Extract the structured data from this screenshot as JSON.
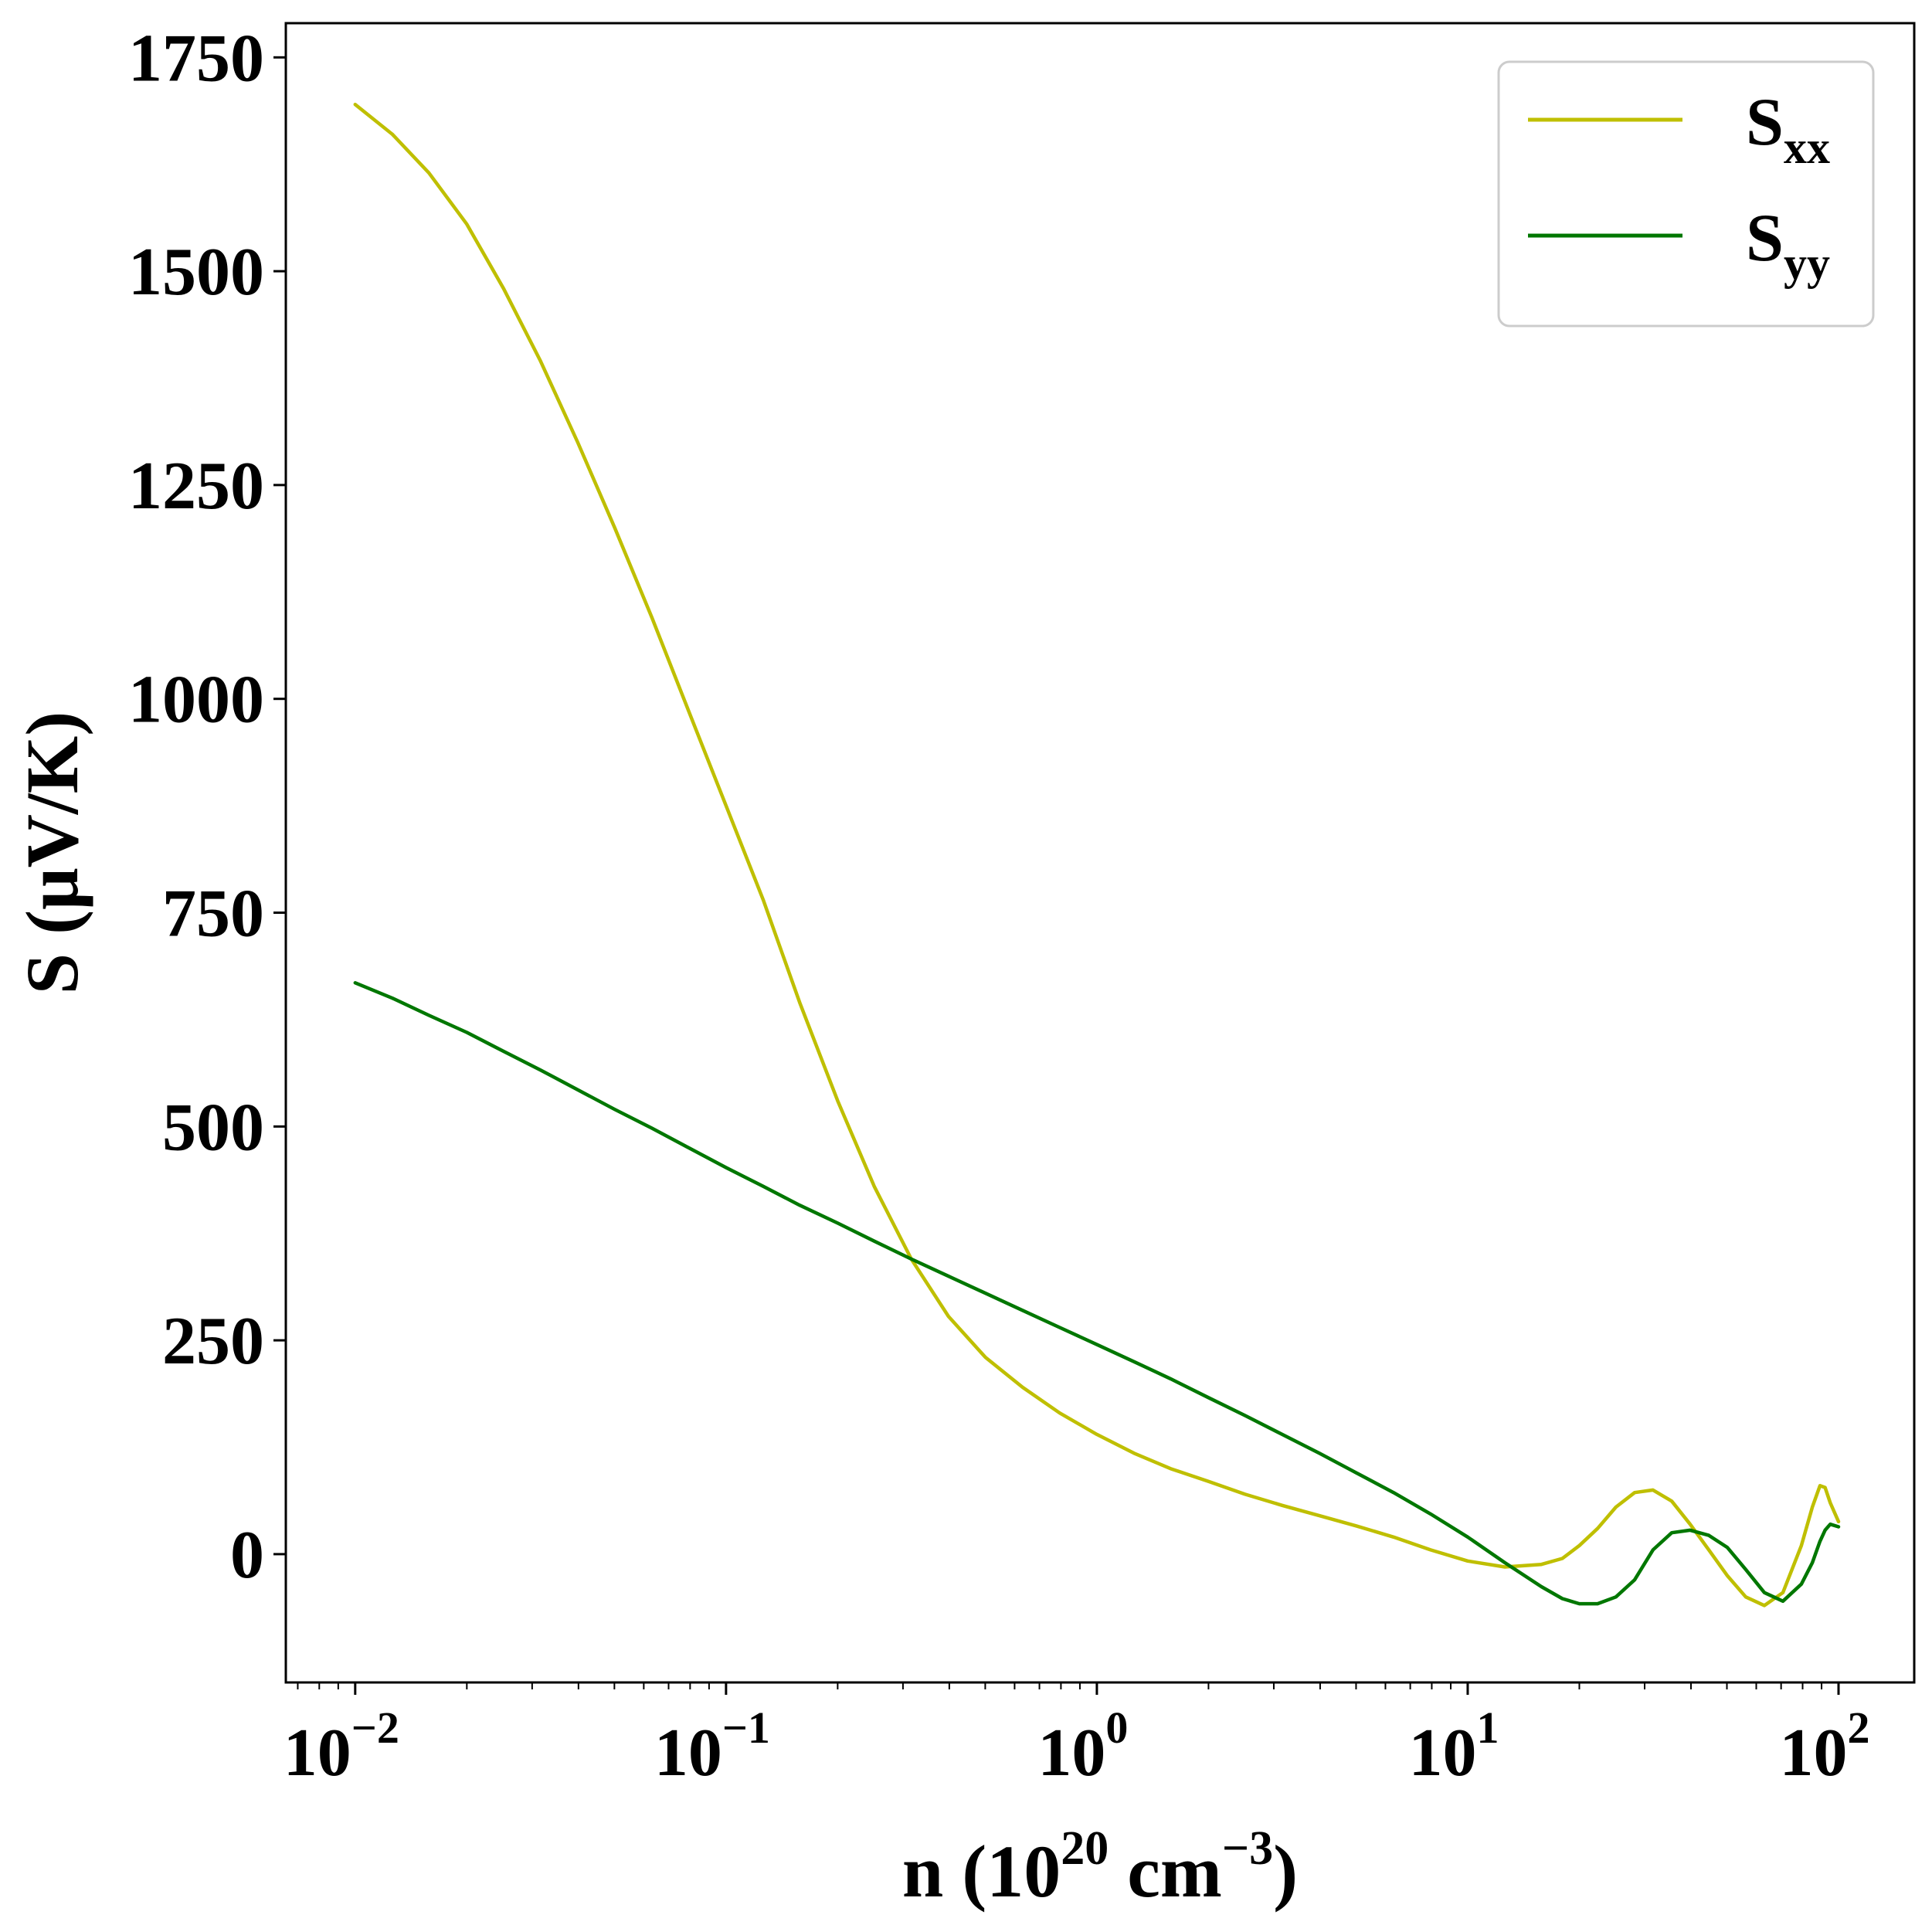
{
  "chart_data": {
    "type": "line",
    "xscale": "log",
    "xlim": [
      0.0065,
      160
    ],
    "ylim": [
      -150,
      1790
    ],
    "x_ticks": [
      {
        "value": 0.01,
        "base": "10",
        "exp": "−2"
      },
      {
        "value": 0.1,
        "base": "10",
        "exp": "−1"
      },
      {
        "value": 1,
        "base": "10",
        "exp": "0"
      },
      {
        "value": 10,
        "base": "10",
        "exp": "1"
      },
      {
        "value": 100,
        "base": "10",
        "exp": "2"
      }
    ],
    "y_ticks": [
      0,
      250,
      500,
      750,
      1000,
      1250,
      1500,
      1750
    ],
    "xlabel": {
      "main": "n (10",
      "sup1": "20",
      "mid": " cm",
      "sup2": "−3",
      "end": ")"
    },
    "ylabel": "S (μV/K)",
    "legend_position": "upper-right",
    "grid": false,
    "series": [
      {
        "name": "S",
        "subscript": "xx",
        "color": "#bfbf00",
        "x": [
          0.01,
          0.0126,
          0.0158,
          0.02,
          0.0251,
          0.0316,
          0.0398,
          0.0501,
          0.0631,
          0.0794,
          0.1,
          0.126,
          0.158,
          0.2,
          0.251,
          0.316,
          0.398,
          0.501,
          0.631,
          0.794,
          1.0,
          1.26,
          1.58,
          2.0,
          2.51,
          3.16,
          3.98,
          5.01,
          6.31,
          7.94,
          10.0,
          12.6,
          15.8,
          18.0,
          20.0,
          22.4,
          25.1,
          28.2,
          31.6,
          35.5,
          39.8,
          44.7,
          50.1,
          56.2,
          63.1,
          70.8,
          79.4,
          85.0,
          89.1,
          92.0,
          95.0,
          100.0
        ],
        "y": [
          1695,
          1660,
          1615,
          1555,
          1480,
          1395,
          1300,
          1200,
          1095,
          985,
          875,
          765,
          645,
          530,
          430,
          345,
          278,
          230,
          195,
          165,
          140,
          118,
          100,
          85,
          70,
          57,
          45,
          33,
          20,
          5,
          -8,
          -15,
          -12,
          -5,
          10,
          30,
          55,
          72,
          75,
          62,
          35,
          5,
          -25,
          -50,
          -60,
          -45,
          10,
          55,
          80,
          78,
          60,
          38
        ]
      },
      {
        "name": "S",
        "subscript": "yy",
        "color": "#007700",
        "x": [
          0.01,
          0.0126,
          0.0158,
          0.02,
          0.0251,
          0.0316,
          0.0398,
          0.0501,
          0.0631,
          0.0794,
          0.1,
          0.126,
          0.158,
          0.2,
          0.251,
          0.316,
          0.398,
          0.501,
          0.631,
          0.794,
          1.0,
          1.26,
          1.58,
          2.0,
          2.51,
          3.16,
          3.98,
          5.01,
          6.31,
          7.94,
          10.0,
          12.6,
          15.8,
          18.0,
          20.0,
          22.4,
          25.1,
          28.2,
          31.6,
          35.5,
          39.8,
          44.7,
          50.1,
          56.2,
          63.1,
          70.8,
          79.4,
          85.0,
          89.1,
          92.0,
          95.0,
          100.0
        ],
        "y": [
          668,
          650,
          630,
          610,
          588,
          566,
          543,
          520,
          498,
          475,
          452,
          430,
          408,
          387,
          366,
          345,
          325,
          305,
          285,
          265,
          245,
          225,
          205,
          183,
          162,
          140,
          118,
          95,
          72,
          47,
          20,
          -10,
          -38,
          -52,
          -58,
          -58,
          -50,
          -30,
          5,
          25,
          28,
          22,
          8,
          -18,
          -45,
          -55,
          -35,
          -10,
          15,
          28,
          35,
          32
        ]
      }
    ]
  }
}
